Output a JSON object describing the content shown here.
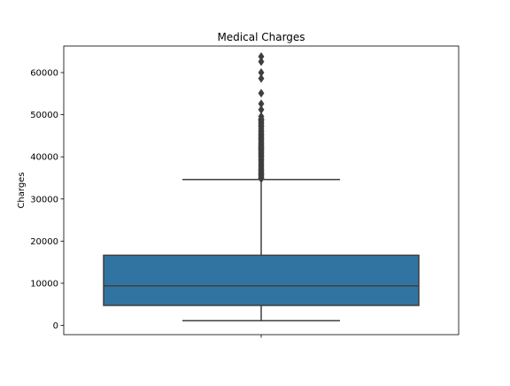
{
  "chart_data": {
    "type": "box",
    "title": "Medical Charges",
    "xlabel": "",
    "ylabel": "Charges",
    "ylim": [
      -2200,
      66300
    ],
    "yticks": [
      0,
      10000,
      20000,
      30000,
      40000,
      50000,
      60000
    ],
    "ytick_labels": [
      "0",
      "10000",
      "20000",
      "30000",
      "40000",
      "50000",
      "60000"
    ],
    "grid": false,
    "box": {
      "whisker_low": 1122,
      "q1": 4740,
      "median": 9382,
      "q3": 16640,
      "whisker_high": 34617,
      "fill": "#3274a1",
      "edge": "#3f3f3f"
    },
    "outliers": [
      34800,
      35000,
      35200,
      35500,
      35800,
      36000,
      36200,
      36500,
      36800,
      37000,
      37300,
      37700,
      38000,
      38300,
      38700,
      39000,
      39300,
      39600,
      40000,
      40200,
      40400,
      40700,
      40900,
      41200,
      41500,
      41700,
      41900,
      42100,
      42300,
      42500,
      42800,
      43000,
      43300,
      43600,
      43900,
      44200,
      44400,
      44600,
      44900,
      45100,
      45400,
      45700,
      46000,
      46200,
      46600,
      47000,
      47300,
      47500,
      47900,
      48200,
      48500,
      48700,
      48900,
      49000,
      49600,
      51200,
      52600,
      55100,
      58600,
      60000,
      62600,
      63800
    ]
  }
}
